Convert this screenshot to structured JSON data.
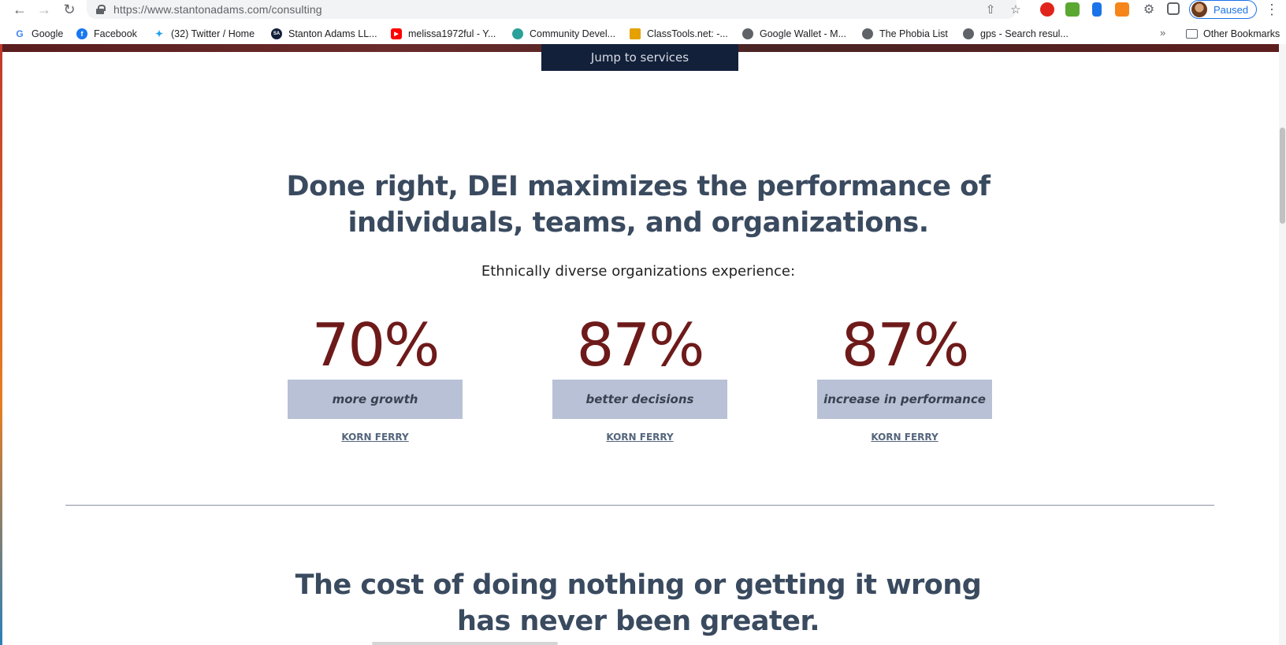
{
  "browser": {
    "url_host": "https://www.stantonadams.com",
    "url_path": "/consulting",
    "profile_label": "Paused"
  },
  "bookmarks": {
    "items": [
      {
        "label": "Google",
        "icon": "google-icon",
        "color": "#4285f4"
      },
      {
        "label": "Facebook",
        "icon": "facebook-icon",
        "color": "#1877f2"
      },
      {
        "label": "(32) Twitter / Home",
        "icon": "twitter-icon",
        "color": "#1da1f2"
      },
      {
        "label": "Stanton Adams LL...",
        "icon": "stanton-adams-icon",
        "color": "#13203a"
      },
      {
        "label": "melissa1972ful - Y...",
        "icon": "youtube-icon",
        "color": "#ff0000"
      },
      {
        "label": "Community Devel...",
        "icon": "community-icon",
        "color": "#2aa198"
      },
      {
        "label": "ClassTools.net: -...",
        "icon": "classtools-icon",
        "color": "#e5a100"
      },
      {
        "label": "Google Wallet - M...",
        "icon": "globe-icon",
        "color": "#5f6368"
      },
      {
        "label": "The Phobia List",
        "icon": "globe-icon",
        "color": "#5f6368"
      },
      {
        "label": "gps - Search resul...",
        "icon": "globe-icon",
        "color": "#5f6368"
      }
    ],
    "other_label": "Other Bookmarks"
  },
  "page": {
    "jump_button": "Jump to services",
    "headline_1_line_1": "Done right, DEI maximizes the performance of",
    "headline_1_line_2": "individuals, teams, and organizations.",
    "subtext": "Ethnically diverse organizations experience:",
    "stats": [
      {
        "value": "70%",
        "label": "more growth",
        "source": "KORN FERRY"
      },
      {
        "value": "87%",
        "label": "better decisions",
        "source": "KORN FERRY"
      },
      {
        "value": "87%",
        "label": "increase in performance",
        "source": "KORN FERRY"
      }
    ],
    "headline_2_line_1": "The cost of doing nothing or getting it wrong",
    "headline_2_line_2": "has never been greater."
  },
  "colors": {
    "accent": "#6e1a1a",
    "navy": "#13203a",
    "label_bg": "#b8c1d6",
    "heading": "#3a4a5f"
  }
}
